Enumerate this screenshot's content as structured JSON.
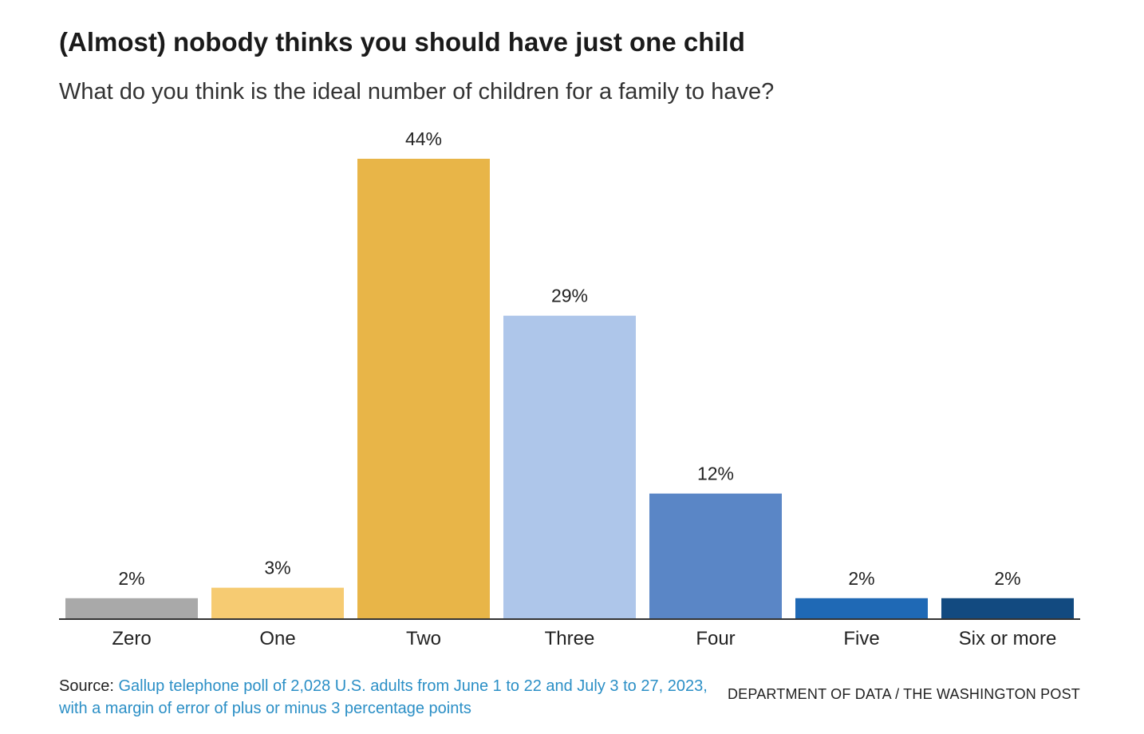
{
  "chart_data": {
    "type": "bar",
    "title": "(Almost) nobody thinks you should have just one child",
    "subtitle": "What do you think is the ideal number of children for a family to have?",
    "categories": [
      "Zero",
      "One",
      "Two",
      "Three",
      "Four",
      "Five",
      "Six or more"
    ],
    "values": [
      2,
      3,
      44,
      29,
      12,
      2,
      2
    ],
    "value_labels": [
      "2%",
      "3%",
      "44%",
      "29%",
      "12%",
      "2%",
      "2%"
    ],
    "colors": [
      "#a9a9a9",
      "#f6cb72",
      "#e8b548",
      "#aec6ea",
      "#5a86c6",
      "#1f69b5",
      "#124a80"
    ],
    "unit": "%",
    "ylim": [
      0,
      44
    ],
    "grid": false,
    "legend": "none"
  },
  "footer": {
    "source_prefix": "Source: ",
    "source_text": "Gallup telephone poll of 2,028 U.S. adults from June 1 to 22 and July 3 to 27, 2023, with a margin of error of plus or minus 3 percentage points",
    "credit": "DEPARTMENT OF DATA / THE WASHINGTON POST"
  }
}
